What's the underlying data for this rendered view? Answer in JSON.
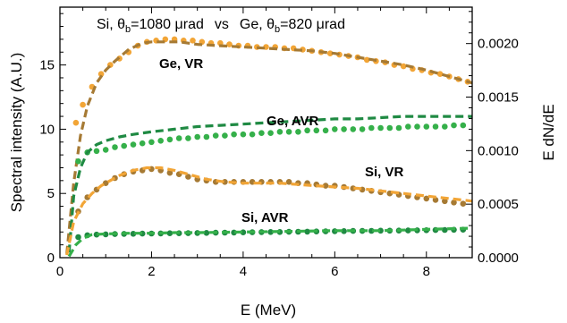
{
  "chart_data": {
    "type": "line",
    "title_left": "Si, θ",
    "title_left_sub": "b",
    "title_left_value": "=1080 μrad",
    "title_vs": "vs",
    "title_right": "Ge, θ",
    "title_right_sub": "b",
    "title_right_value": "=820 μrad",
    "xlabel": "E (MeV)",
    "ylabel_left": "Spectral intensity (A.U.)",
    "ylabel_right": "E dN/dE",
    "xlim": [
      0,
      9
    ],
    "ylim_left": [
      0,
      19.5
    ],
    "ylim_right": [
      0,
      0.00234
    ],
    "x_ticks": [
      "0",
      "2",
      "4",
      "6",
      "8"
    ],
    "y_left_ticks": [
      "0",
      "5",
      "10",
      "15"
    ],
    "y_right_ticks": [
      "0.0000",
      "0.0005",
      "0.0010",
      "0.0015",
      "0.0020"
    ],
    "series": [
      {
        "name": "Ge, VR",
        "color": "#a67a34",
        "label_color": "#a67a34",
        "dashed": {
          "x": [
            0.15,
            0.3,
            0.45,
            0.6,
            0.8,
            1.0,
            1.2,
            1.5,
            1.8,
            2.0,
            2.3,
            2.6,
            3.0,
            3.5,
            4.0,
            4.5,
            5.0,
            5.5,
            6.0,
            6.5,
            7.0,
            7.5,
            8.0,
            8.5,
            9.0
          ],
          "y": [
            0.3,
            5.8,
            9.5,
            11.8,
            13.6,
            14.6,
            15.3,
            16.2,
            16.7,
            16.8,
            16.8,
            16.8,
            16.6,
            16.5,
            16.4,
            16.3,
            16.2,
            16.1,
            15.9,
            15.6,
            15.3,
            15.0,
            14.6,
            14.1,
            13.6
          ]
        },
        "dots": {
          "color": "#f2a536",
          "x": [
            0.35,
            0.5,
            0.7,
            0.9,
            1.1,
            1.3,
            1.5,
            1.7,
            1.9,
            2.1,
            2.3,
            2.5,
            2.7,
            2.9,
            3.1,
            3.3,
            3.5,
            3.7,
            3.9,
            4.1,
            4.3,
            4.5,
            4.7,
            4.9,
            5.1,
            5.3,
            5.5,
            5.7,
            5.9,
            6.1,
            6.3,
            6.5,
            6.7,
            6.9,
            7.1,
            7.3,
            7.5,
            7.7,
            7.9,
            8.1,
            8.3,
            8.5,
            8.7,
            8.9
          ],
          "y": [
            10.5,
            11.9,
            13.3,
            14.3,
            15.0,
            15.5,
            16.0,
            16.5,
            16.8,
            16.9,
            17.0,
            17.0,
            16.9,
            16.9,
            16.8,
            16.7,
            16.7,
            16.6,
            16.5,
            16.5,
            16.4,
            16.4,
            16.4,
            16.3,
            16.3,
            16.2,
            16.1,
            16.0,
            15.9,
            15.8,
            15.7,
            15.6,
            15.4,
            15.3,
            15.2,
            15.0,
            14.9,
            14.7,
            14.6,
            14.4,
            14.3,
            14.1,
            13.9,
            13.7
          ]
        }
      },
      {
        "name": "Ge, AVR",
        "color": "#1f8a43",
        "label_color": "#1f8a43",
        "dashed": {
          "x": [
            0.2,
            0.3,
            0.45,
            0.6,
            0.8,
            1.0,
            1.3,
            1.6,
            2.0,
            2.5,
            3.0,
            3.5,
            4.0,
            4.5,
            5.0,
            5.5,
            6.0,
            6.5,
            7.0,
            7.5,
            8.0,
            8.5,
            9.0
          ],
          "y": [
            0.4,
            4.8,
            7.0,
            8.2,
            8.8,
            9.1,
            9.4,
            9.6,
            9.8,
            10.0,
            10.2,
            10.3,
            10.4,
            10.5,
            10.6,
            10.7,
            10.8,
            10.8,
            10.9,
            11.0,
            11.0,
            11.0,
            11.0
          ]
        },
        "dots": {
          "color": "#35b04a",
          "x": [
            0.4,
            0.6,
            0.8,
            1.0,
            1.2,
            1.4,
            1.6,
            1.8,
            2.0,
            2.2,
            2.4,
            2.6,
            2.8,
            3.0,
            3.2,
            3.4,
            3.6,
            3.8,
            4.0,
            4.2,
            4.4,
            4.6,
            4.8,
            5.0,
            5.2,
            5.4,
            5.6,
            5.8,
            6.0,
            6.2,
            6.4,
            6.6,
            6.8,
            7.0,
            7.2,
            7.4,
            7.6,
            7.8,
            8.0,
            8.2,
            8.4,
            8.6,
            8.8
          ],
          "y": [
            7.5,
            8.2,
            8.3,
            8.4,
            8.6,
            8.7,
            8.8,
            8.9,
            9.0,
            9.1,
            9.2,
            9.3,
            9.3,
            9.4,
            9.4,
            9.5,
            9.5,
            9.6,
            9.6,
            9.6,
            9.7,
            9.7,
            9.8,
            9.8,
            9.8,
            9.9,
            9.9,
            9.9,
            10.0,
            10.0,
            10.0,
            10.0,
            10.1,
            10.1,
            10.1,
            10.1,
            10.2,
            10.2,
            10.2,
            10.2,
            10.2,
            10.3,
            10.3
          ]
        }
      },
      {
        "name": "Si, VR",
        "color": "#f2a536",
        "label_color": "#f2a536",
        "dashed": {
          "x": [
            0.15,
            0.3,
            0.5,
            0.7,
            0.9,
            1.1,
            1.3,
            1.6,
            1.9,
            2.2,
            2.5,
            2.8,
            3.2,
            3.6,
            4.0,
            4.4,
            4.8,
            5.2,
            5.6,
            6.0,
            6.5,
            7.0,
            7.5,
            8.0,
            8.5,
            9.0
          ],
          "y": [
            0.2,
            2.8,
            4.2,
            5.0,
            5.6,
            6.0,
            6.4,
            6.8,
            7.0,
            7.0,
            6.8,
            6.5,
            6.1,
            5.9,
            5.8,
            5.8,
            5.8,
            5.7,
            5.6,
            5.5,
            5.4,
            5.2,
            5.0,
            4.8,
            4.6,
            4.4
          ]
        },
        "dots": {
          "color": "#a67a34",
          "x": [
            0.4,
            0.6,
            0.8,
            1.0,
            1.2,
            1.4,
            1.6,
            1.8,
            2.0,
            2.2,
            2.4,
            2.6,
            2.8,
            3.0,
            3.2,
            3.4,
            3.6,
            3.8,
            4.0,
            4.2,
            4.4,
            4.6,
            4.8,
            5.0,
            5.2,
            5.4,
            5.6,
            5.8,
            6.0,
            6.2,
            6.4,
            6.6,
            6.8,
            7.0,
            7.2,
            7.4,
            7.6,
            7.8,
            8.0,
            8.2,
            8.4,
            8.6,
            8.8
          ],
          "y": [
            3.6,
            4.7,
            5.3,
            5.8,
            6.2,
            6.5,
            6.7,
            6.8,
            6.9,
            6.8,
            6.6,
            6.5,
            6.3,
            6.1,
            6.0,
            5.9,
            5.9,
            5.9,
            5.9,
            5.9,
            5.9,
            5.9,
            5.9,
            5.9,
            5.8,
            5.8,
            5.7,
            5.6,
            5.6,
            5.5,
            5.4,
            5.3,
            5.2,
            5.1,
            5.0,
            4.9,
            4.8,
            4.7,
            4.6,
            4.5,
            4.4,
            4.3,
            4.2
          ]
        }
      },
      {
        "name": "Si, AVR",
        "color": "#35b04a",
        "label_color": "#35b04a",
        "dashed": {
          "x": [
            0.2,
            0.35,
            0.5,
            0.7,
            1.0,
            1.5,
            2.0,
            2.5,
            3.0,
            4.0,
            5.0,
            6.0,
            7.0,
            8.0,
            9.0
          ],
          "y": [
            0.1,
            1.0,
            1.5,
            1.8,
            1.85,
            1.9,
            1.9,
            1.95,
            1.95,
            2.0,
            2.05,
            2.1,
            2.1,
            2.2,
            2.3
          ]
        },
        "dots": {
          "color": "#1f8a43",
          "x": [
            0.4,
            0.6,
            0.8,
            1.0,
            1.2,
            1.4,
            1.6,
            1.8,
            2.0,
            2.2,
            2.4,
            2.6,
            2.8,
            3.0,
            3.2,
            3.4,
            3.6,
            3.8,
            4.0,
            4.2,
            4.4,
            4.6,
            4.8,
            5.0,
            5.2,
            5.4,
            5.6,
            5.8,
            6.0,
            6.2,
            6.4,
            6.6,
            6.8,
            7.0,
            7.2,
            7.4,
            7.6,
            7.8,
            8.0,
            8.2,
            8.4,
            8.6,
            8.8
          ],
          "y": [
            1.6,
            1.75,
            1.8,
            1.82,
            1.84,
            1.85,
            1.86,
            1.87,
            1.88,
            1.89,
            1.9,
            1.9,
            1.91,
            1.92,
            1.93,
            1.94,
            1.95,
            1.96,
            1.97,
            1.98,
            1.99,
            2.0,
            2.0,
            2.01,
            2.02,
            2.03,
            2.04,
            2.05,
            2.06,
            2.07,
            2.08,
            2.08,
            2.09,
            2.1,
            2.1,
            2.11,
            2.12,
            2.13,
            2.14,
            2.15,
            2.16,
            2.17,
            2.18
          ]
        }
      }
    ],
    "annotations": [
      "Ge, VR",
      "Ge, AVR",
      "Si, VR",
      "Si, AVR"
    ]
  }
}
